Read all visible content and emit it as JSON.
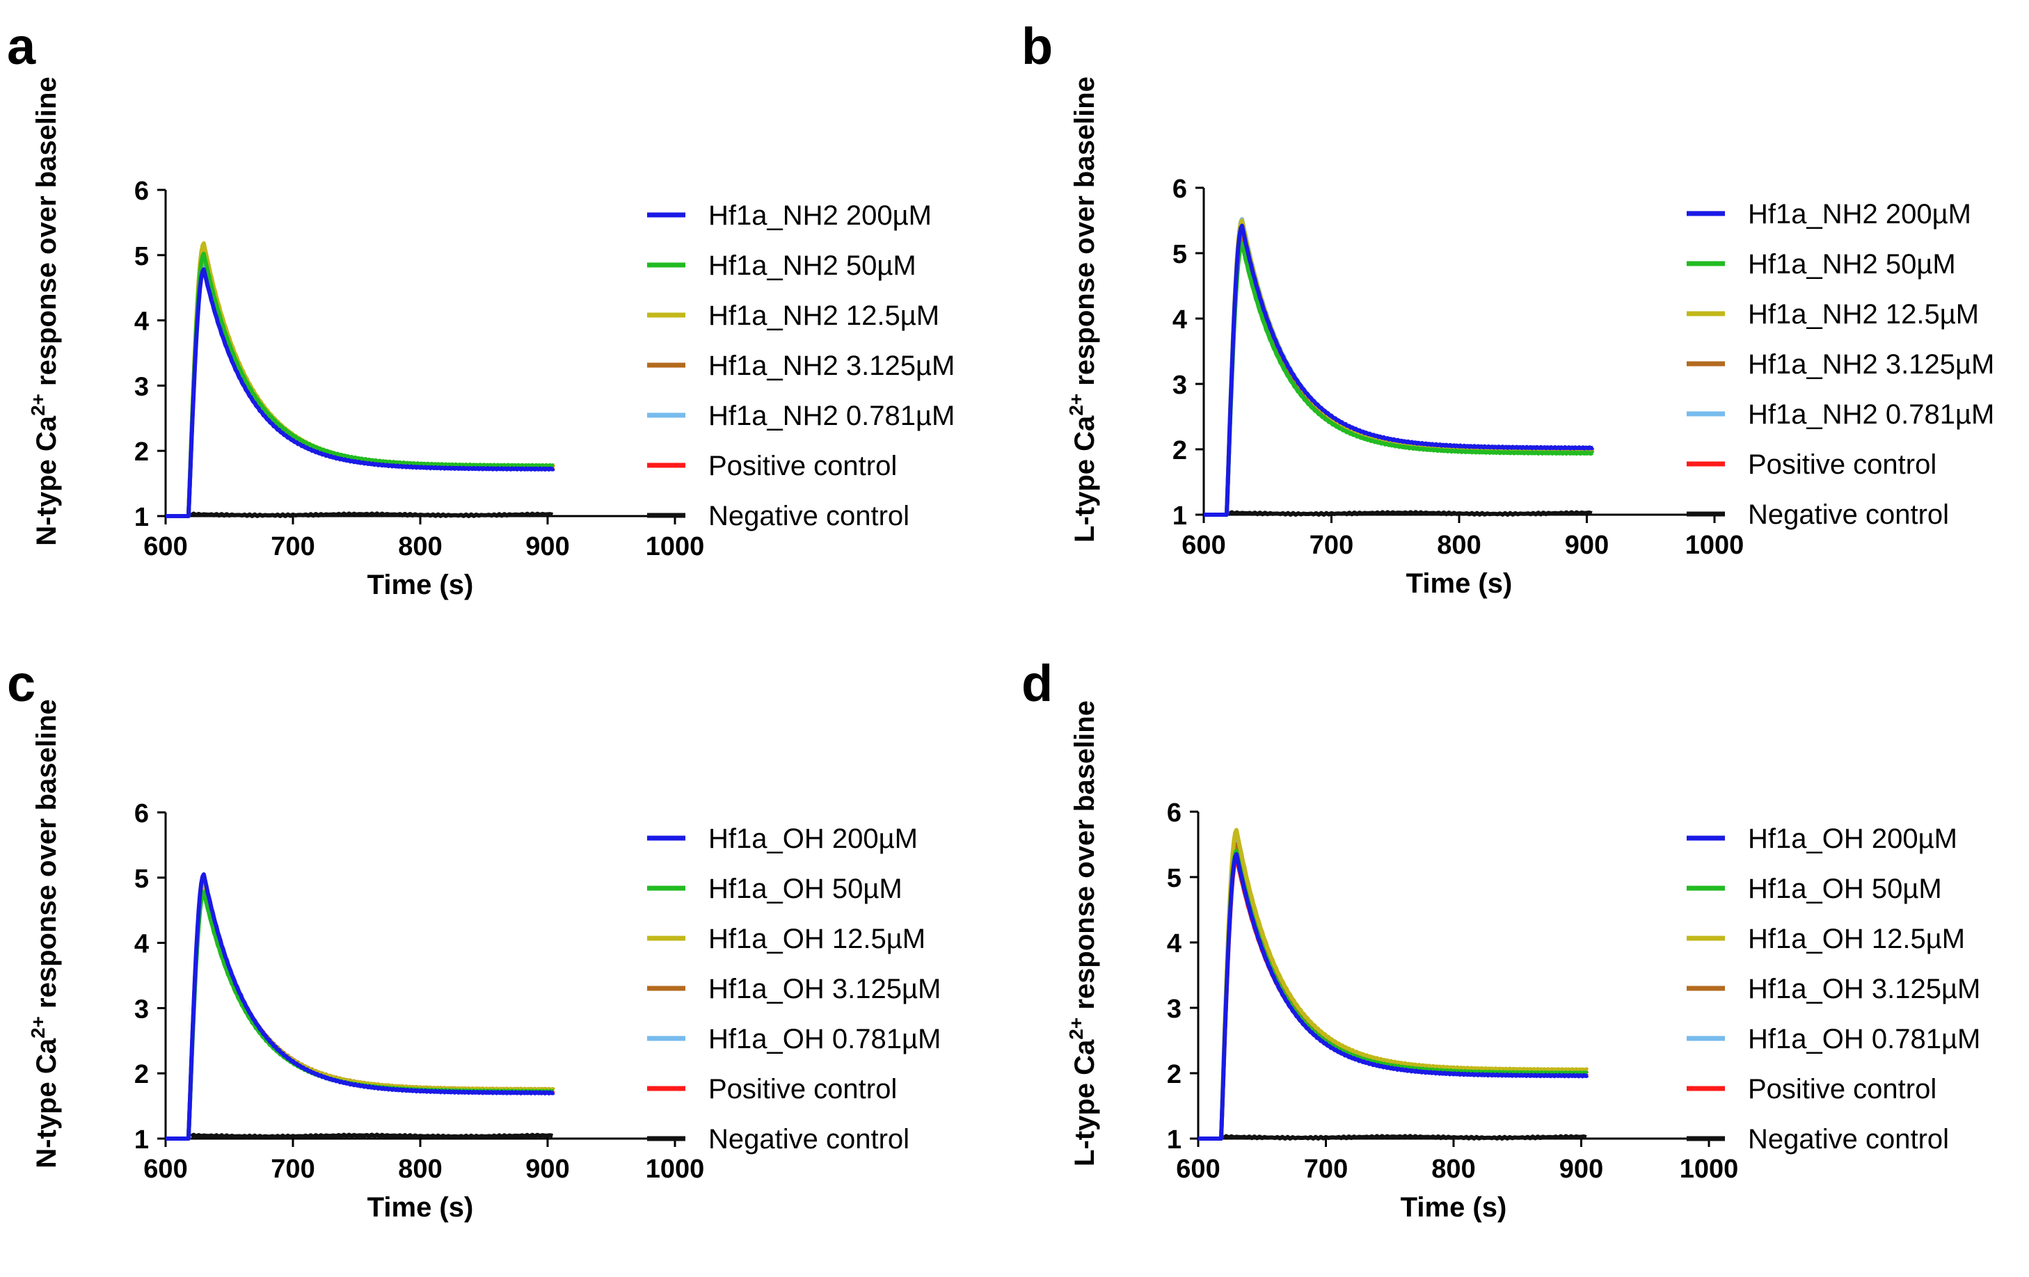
{
  "colors": {
    "series": [
      "#1a1ae6",
      "#22bb22",
      "#c2b81a",
      "#b36a1e",
      "#77bbee",
      "#ff1a1a",
      "#111111"
    ],
    "axis": "#000000",
    "background": "#ffffff"
  },
  "chart_data": [
    {
      "type": "line",
      "panel_label": "a",
      "xlabel": "Time (s)",
      "ylabel_prefix": "N-type Ca",
      "ylabel_sup": "2+",
      "ylabel_suffix": " response over baseline",
      "xlim": [
        600,
        1000
      ],
      "ylim": [
        1,
        6
      ],
      "xticks": [
        "600",
        "700",
        "800",
        "900",
        "1000"
      ],
      "yticks": [
        "1",
        "2",
        "3",
        "4",
        "5",
        "6"
      ],
      "grid": false,
      "legend_position": "right",
      "series": [
        {
          "name": "Hf1a_NH2 200µM",
          "peak": 4.78,
          "plateau": 1.72
        },
        {
          "name": "Hf1a_NH2 50µM",
          "peak": 5.02,
          "plateau": 1.77
        },
        {
          "name": "Hf1a_NH2 12.5µM",
          "peak": 5.18,
          "plateau": 1.76
        },
        {
          "name": "Hf1a_NH2 3.125µM",
          "peak": 5.08,
          "plateau": 1.75
        },
        {
          "name": "Hf1a_NH2 0.781µM",
          "peak": 4.95,
          "plateau": 1.74
        },
        {
          "name": "Positive control",
          "peak": 4.85,
          "plateau": 1.74
        },
        {
          "name": "Negative control",
          "value": 1.02
        }
      ]
    },
    {
      "type": "line",
      "panel_label": "b",
      "xlabel": "Time (s)",
      "ylabel_prefix": "L-type Ca",
      "ylabel_sup": "2+",
      "ylabel_suffix": " response over baseline",
      "xlim": [
        600,
        1000
      ],
      "ylim": [
        1,
        6
      ],
      "xticks": [
        "600",
        "700",
        "800",
        "900",
        "1000"
      ],
      "yticks": [
        "1",
        "2",
        "3",
        "4",
        "5",
        "6"
      ],
      "grid": false,
      "legend_position": "right",
      "series": [
        {
          "name": "Hf1a_NH2 200µM",
          "peak": 5.42,
          "plateau": 2.02
        },
        {
          "name": "Hf1a_NH2 50µM",
          "peak": 5.15,
          "plateau": 1.94
        },
        {
          "name": "Hf1a_NH2 12.5µM",
          "peak": 5.5,
          "plateau": 1.98
        },
        {
          "name": "Hf1a_NH2 3.125µM",
          "peak": 5.35,
          "plateau": 1.97
        },
        {
          "name": "Hf1a_NH2 0.781µM",
          "peak": 5.52,
          "plateau": 1.99
        },
        {
          "name": "Positive control",
          "peak": 5.3,
          "plateau": 1.98
        },
        {
          "name": "Negative control",
          "value": 1.02
        }
      ]
    },
    {
      "type": "line",
      "panel_label": "c",
      "xlabel": "Time (s)",
      "ylabel_prefix": "N-type Ca",
      "ylabel_sup": "2+",
      "ylabel_suffix": " response over baseline",
      "xlim": [
        600,
        1000
      ],
      "ylim": [
        1,
        6
      ],
      "xticks": [
        "600",
        "700",
        "800",
        "900",
        "1000"
      ],
      "yticks": [
        "1",
        "2",
        "3",
        "4",
        "5",
        "6"
      ],
      "grid": false,
      "legend_position": "right",
      "series": [
        {
          "name": "Hf1a_OH 200µM",
          "peak": 5.05,
          "plateau": 1.7
        },
        {
          "name": "Hf1a_OH 50µM",
          "peak": 4.78,
          "plateau": 1.72
        },
        {
          "name": "Hf1a_OH 12.5µM",
          "peak": 4.9,
          "plateau": 1.75
        },
        {
          "name": "Hf1a_OH 3.125µM",
          "peak": 4.95,
          "plateau": 1.75
        },
        {
          "name": "Hf1a_OH 0.781µM",
          "peak": 4.88,
          "plateau": 1.74
        },
        {
          "name": "Positive control",
          "peak": 4.98,
          "plateau": 1.73
        },
        {
          "name": "Negative control",
          "value": 1.04
        }
      ]
    },
    {
      "type": "line",
      "panel_label": "d",
      "xlabel": "Time (s)",
      "ylabel_prefix": "L-type Ca",
      "ylabel_sup": "2+",
      "ylabel_suffix": " response over baseline",
      "xlim": [
        600,
        1000
      ],
      "ylim": [
        1,
        6
      ],
      "xticks": [
        "600",
        "700",
        "800",
        "900",
        "1000"
      ],
      "yticks": [
        "1",
        "2",
        "3",
        "4",
        "5",
        "6"
      ],
      "grid": false,
      "legend_position": "right",
      "series": [
        {
          "name": "Hf1a_OH 200µM",
          "peak": 5.35,
          "plateau": 1.96
        },
        {
          "name": "Hf1a_OH 50µM",
          "peak": 5.4,
          "plateau": 2.0
        },
        {
          "name": "Hf1a_OH 12.5µM",
          "peak": 5.72,
          "plateau": 2.05
        },
        {
          "name": "Hf1a_OH 3.125µM",
          "peak": 5.5,
          "plateau": 2.0
        },
        {
          "name": "Hf1a_OH 0.781µM",
          "peak": 5.58,
          "plateau": 2.03
        },
        {
          "name": "Positive control",
          "peak": 5.3,
          "plateau": 1.99
        },
        {
          "name": "Negative control",
          "value": 1.02
        }
      ]
    }
  ]
}
